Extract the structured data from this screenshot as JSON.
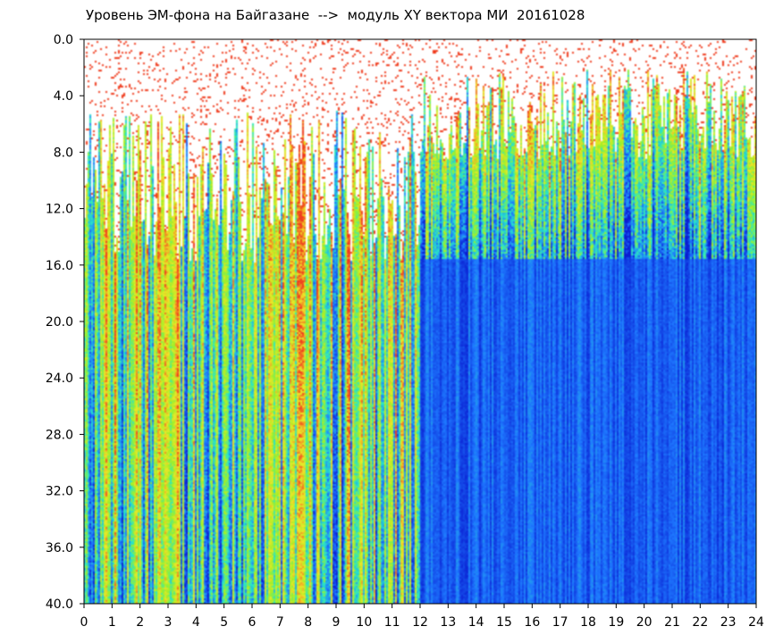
{
  "title": "Уровень ЭМ-фона на Байгазане  -->  модуль XY вектора МИ  20161028",
  "chart_data": {
    "type": "heatmap",
    "title": "Уровень ЭМ-фона на Байгазане  -->  модуль XY вектора МИ  20161028",
    "xlabel": "",
    "ylabel": "",
    "xlim": [
      0,
      24
    ],
    "ylim": [
      40.0,
      0.0
    ],
    "x_ticks": [
      0,
      1,
      2,
      3,
      4,
      5,
      6,
      7,
      8,
      9,
      10,
      11,
      12,
      13,
      14,
      15,
      16,
      17,
      18,
      19,
      20,
      21,
      22,
      23,
      24
    ],
    "y_ticks": [
      "0.0",
      "4.0",
      "8.0",
      "12.0",
      "16.0",
      "20.0",
      "24.0",
      "28.0",
      "32.0",
      "36.0",
      "40.0"
    ],
    "y_inverted": true,
    "colormap": [
      "#0a1ed2",
      "#1e78ff",
      "#28e6c8",
      "#a0f028",
      "#f0e628",
      "#f03c1e"
    ],
    "background_color": "#ffffff",
    "intensity_bands": [
      {
        "from_hour": 0,
        "to_hour": 12,
        "high_level_onset": [
          5.0,
          16.0
        ],
        "description_level": "green/yellow/red streaks down to 40"
      },
      {
        "from_hour": 12,
        "to_hour": 24,
        "high_level_onset": [
          2.0,
          8.5
        ],
        "description_level": "red/green above ~16, blue below"
      }
    ],
    "grid": false,
    "legend": "none"
  }
}
